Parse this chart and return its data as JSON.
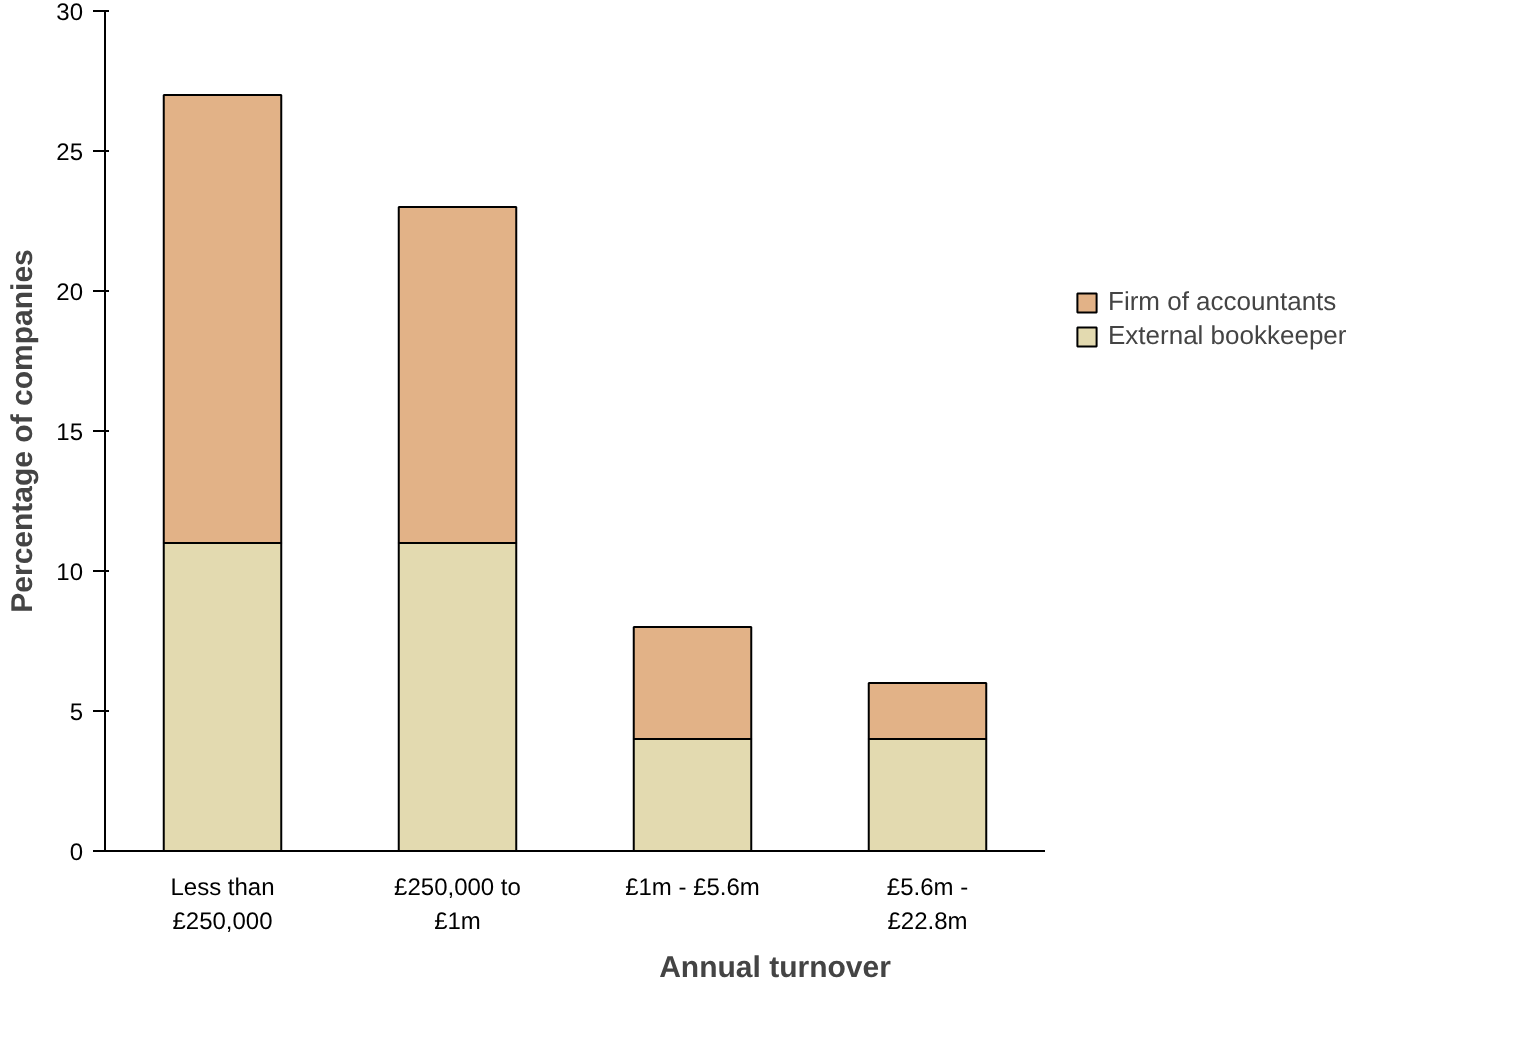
{
  "chart_data": {
    "type": "bar",
    "stacked": true,
    "xlabel": "Annual turnover",
    "ylabel": "Percentage of companies",
    "categories": [
      "Less than\n£250,000",
      "£250,000 to\n£1m",
      "£1m - £5.6m",
      "£5.6m -\n£22.8m"
    ],
    "series": [
      {
        "name": "External bookkeeper",
        "color": "#e3dab0",
        "values": [
          11,
          11,
          4,
          4
        ]
      },
      {
        "name": "Firm of accountants",
        "color": "#e2b287",
        "values": [
          16,
          12,
          4,
          2
        ]
      }
    ],
    "ylim": [
      0,
      30
    ],
    "yticks": [
      0,
      5,
      10,
      15,
      20,
      25,
      30
    ],
    "grid": false,
    "legend": "right"
  }
}
